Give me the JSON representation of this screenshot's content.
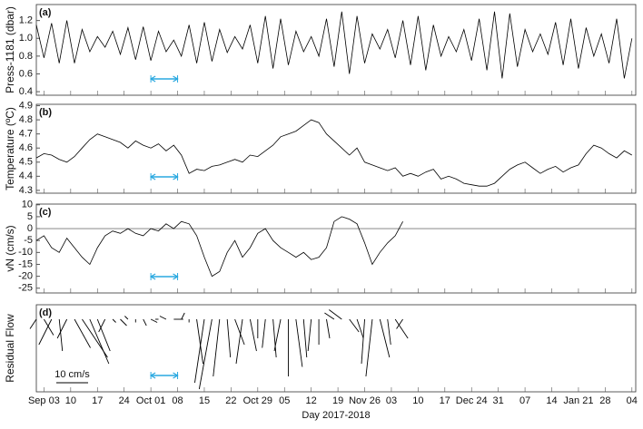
{
  "chart_data": [
    {
      "type": "line",
      "label": "(a)",
      "ylabel": "Press-1181 (dbar)",
      "color": "#000000",
      "x": [
        "2017-09-01",
        "2017-09-03",
        "2017-09-05",
        "2017-09-07",
        "2017-09-09",
        "2017-09-11",
        "2017-09-13",
        "2017-09-15",
        "2017-09-17",
        "2017-09-19",
        "2017-09-21",
        "2017-09-23",
        "2017-09-25",
        "2017-09-27",
        "2017-09-29",
        "2017-10-01",
        "2017-10-03",
        "2017-10-05",
        "2017-10-07",
        "2017-10-09",
        "2017-10-11",
        "2017-10-13",
        "2017-10-15",
        "2017-10-17",
        "2017-10-19",
        "2017-10-21",
        "2017-10-23",
        "2017-10-25",
        "2017-10-27",
        "2017-10-29",
        "2017-10-31",
        "2017-11-02",
        "2017-11-04",
        "2017-11-06",
        "2017-11-08",
        "2017-11-10",
        "2017-11-12",
        "2017-11-14",
        "2017-11-16",
        "2017-11-18",
        "2017-11-20",
        "2017-11-22",
        "2017-11-24",
        "2017-11-26",
        "2017-11-28",
        "2017-11-30",
        "2017-12-02",
        "2017-12-04",
        "2017-12-06",
        "2017-12-08",
        "2017-12-10",
        "2017-12-12",
        "2017-12-14",
        "2017-12-16",
        "2017-12-18",
        "2017-12-20",
        "2017-12-22",
        "2017-12-24",
        "2017-12-26",
        "2017-12-28",
        "2017-12-30",
        "2018-01-01",
        "2018-01-03",
        "2018-01-05",
        "2018-01-07",
        "2018-01-09",
        "2018-01-11",
        "2018-01-13",
        "2018-01-15",
        "2018-01-17",
        "2018-01-19",
        "2018-01-21",
        "2018-01-23",
        "2018-01-25",
        "2018-01-27",
        "2018-01-29",
        "2018-01-31",
        "2018-02-02",
        "2018-02-04"
      ],
      "values": [
        1.15,
        0.78,
        1.17,
        0.72,
        1.2,
        0.72,
        1.1,
        0.85,
        1.02,
        0.9,
        1.08,
        0.82,
        1.12,
        0.76,
        1.13,
        0.75,
        1.08,
        0.85,
        0.98,
        0.8,
        1.15,
        0.72,
        1.18,
        0.74,
        1.1,
        0.84,
        1.02,
        0.88,
        1.15,
        0.72,
        1.25,
        0.66,
        1.22,
        0.7,
        1.08,
        0.85,
        1.02,
        0.8,
        1.22,
        0.68,
        1.3,
        0.6,
        1.25,
        0.72,
        1.05,
        0.88,
        1.1,
        0.78,
        1.2,
        0.7,
        1.25,
        0.64,
        1.15,
        0.8,
        1.02,
        0.85,
        1.1,
        0.75,
        1.22,
        0.64,
        1.3,
        0.55,
        1.28,
        0.68,
        1.1,
        0.85,
        1.05,
        0.82,
        1.18,
        0.7,
        1.22,
        0.66,
        1.12,
        0.8,
        1.05,
        0.72,
        1.22,
        0.55,
        1.0
      ],
      "ylim": [
        0.36,
        1.38
      ],
      "yticks": [
        0.4,
        0.6,
        0.8,
        {
          "value": 1,
          "label": "1.0"
        },
        1.2
      ],
      "span": {
        "start": "2017-10-01",
        "end": "2017-10-08",
        "color": "#29a8e0"
      }
    },
    {
      "type": "line",
      "label": "(b)",
      "ylabel": "Temperature (ºC)",
      "color": "#000000",
      "x": [
        "2017-09-01",
        "2017-09-03",
        "2017-09-05",
        "2017-09-07",
        "2017-09-09",
        "2017-09-11",
        "2017-09-13",
        "2017-09-15",
        "2017-09-17",
        "2017-09-19",
        "2017-09-21",
        "2017-09-23",
        "2017-09-25",
        "2017-09-27",
        "2017-09-29",
        "2017-10-01",
        "2017-10-03",
        "2017-10-05",
        "2017-10-07",
        "2017-10-09",
        "2017-10-11",
        "2017-10-13",
        "2017-10-15",
        "2017-10-17",
        "2017-10-19",
        "2017-10-21",
        "2017-10-23",
        "2017-10-25",
        "2017-10-27",
        "2017-10-29",
        "2017-10-31",
        "2017-11-02",
        "2017-11-04",
        "2017-11-06",
        "2017-11-08",
        "2017-11-10",
        "2017-11-12",
        "2017-11-14",
        "2017-11-16",
        "2017-11-18",
        "2017-11-20",
        "2017-11-22",
        "2017-11-24",
        "2017-11-26",
        "2017-11-28",
        "2017-11-30",
        "2017-12-02",
        "2017-12-04",
        "2017-12-06",
        "2017-12-08",
        "2017-12-10",
        "2017-12-12",
        "2017-12-14",
        "2017-12-16",
        "2017-12-18",
        "2017-12-20",
        "2017-12-22",
        "2017-12-24",
        "2017-12-26",
        "2017-12-28",
        "2017-12-30",
        "2018-01-01",
        "2018-01-03",
        "2018-01-05",
        "2018-01-07",
        "2018-01-09",
        "2018-01-11",
        "2018-01-13",
        "2018-01-15",
        "2018-01-17",
        "2018-01-19",
        "2018-01-21",
        "2018-01-23",
        "2018-01-25",
        "2018-01-27",
        "2018-01-29",
        "2018-01-31",
        "2018-02-02",
        "2018-02-04"
      ],
      "values": [
        4.53,
        4.56,
        4.55,
        4.52,
        4.5,
        4.54,
        4.6,
        4.66,
        4.7,
        4.68,
        4.66,
        4.64,
        4.6,
        4.65,
        4.62,
        4.6,
        4.63,
        4.58,
        4.62,
        4.55,
        4.42,
        4.45,
        4.44,
        4.47,
        4.48,
        4.5,
        4.52,
        4.5,
        4.55,
        4.54,
        4.58,
        4.62,
        4.68,
        4.7,
        4.72,
        4.76,
        4.8,
        4.78,
        4.7,
        4.65,
        4.6,
        4.55,
        4.6,
        4.5,
        4.48,
        4.46,
        4.44,
        4.46,
        4.4,
        4.42,
        4.4,
        4.43,
        4.45,
        4.38,
        4.4,
        4.38,
        4.35,
        4.34,
        4.33,
        4.33,
        4.35,
        4.4,
        4.45,
        4.48,
        4.5,
        4.46,
        4.42,
        4.45,
        4.47,
        4.43,
        4.46,
        4.48,
        4.56,
        4.62,
        4.6,
        4.56,
        4.53,
        4.58,
        4.55
      ],
      "ylim": [
        4.28,
        4.91
      ],
      "yticks": [
        4.3,
        4.4,
        4.5,
        4.6,
        4.7,
        4.8,
        4.9
      ]
    },
    {
      "type": "line",
      "label": "(c)",
      "ylabel": "vN (cm/s)",
      "color": "#000000",
      "hline": 0,
      "x": [
        "2017-09-01",
        "2017-09-03",
        "2017-09-05",
        "2017-09-07",
        "2017-09-09",
        "2017-09-11",
        "2017-09-13",
        "2017-09-15",
        "2017-09-17",
        "2017-09-19",
        "2017-09-21",
        "2017-09-23",
        "2017-09-25",
        "2017-09-27",
        "2017-09-29",
        "2017-10-01",
        "2017-10-03",
        "2017-10-05",
        "2017-10-07",
        "2017-10-09",
        "2017-10-11",
        "2017-10-13",
        "2017-10-15",
        "2017-10-17",
        "2017-10-19",
        "2017-10-21",
        "2017-10-23",
        "2017-10-25",
        "2017-10-27",
        "2017-10-29",
        "2017-10-31",
        "2017-11-02",
        "2017-11-04",
        "2017-11-06",
        "2017-11-08",
        "2017-11-10",
        "2017-11-12",
        "2017-11-14",
        "2017-11-16",
        "2017-11-18",
        "2017-11-20",
        "2017-11-22",
        "2017-11-24",
        "2017-11-26",
        "2017-11-28",
        "2017-11-30",
        "2017-12-02",
        "2017-12-04",
        "2017-12-06"
      ],
      "values": [
        -5,
        -3,
        -8,
        -10,
        -4,
        -8,
        -12,
        -15,
        -8,
        -3,
        -1,
        -2,
        0,
        -2,
        -3,
        0,
        -1,
        2,
        0,
        3,
        2,
        -3,
        -12,
        -20,
        -18,
        -10,
        -5,
        -12,
        -8,
        -2,
        0,
        -5,
        -8,
        -10,
        -12,
        -10,
        -13,
        -12,
        -8,
        3,
        5,
        4,
        2,
        -6,
        -15,
        -10,
        -6,
        -3,
        3
      ],
      "ylim": [
        -27,
        10.3
      ],
      "yticks": [
        -25,
        -20,
        -15,
        -10,
        -5,
        0,
        5,
        10
      ]
    },
    {
      "type": "stick",
      "label": "(d)",
      "ylabel": "Residual Flow",
      "color": "#000000",
      "xlabel": "Day 2017-2018",
      "scale_bar": {
        "value": 10,
        "label": "10 cm/s"
      },
      "x": [
        "2017-09-01",
        "2017-09-03",
        "2017-09-05",
        "2017-09-07",
        "2017-09-09",
        "2017-09-11",
        "2017-09-13",
        "2017-09-15",
        "2017-09-17",
        "2017-09-19",
        "2017-09-21",
        "2017-09-23",
        "2017-09-25",
        "2017-09-27",
        "2017-09-29",
        "2017-10-01",
        "2017-10-03",
        "2017-10-05",
        "2017-10-07",
        "2017-10-09",
        "2017-10-11",
        "2017-10-13",
        "2017-10-15",
        "2017-10-17",
        "2017-10-19",
        "2017-10-21",
        "2017-10-23",
        "2017-10-25",
        "2017-10-27",
        "2017-10-29",
        "2017-10-31",
        "2017-11-02",
        "2017-11-04",
        "2017-11-06",
        "2017-11-08",
        "2017-11-10",
        "2017-11-12",
        "2017-11-14",
        "2017-11-16",
        "2017-11-18",
        "2017-11-20",
        "2017-11-22",
        "2017-11-24",
        "2017-11-26",
        "2017-11-28",
        "2017-11-30",
        "2017-12-02",
        "2017-12-04",
        "2017-12-06"
      ],
      "u": [
        -2,
        3,
        -4,
        1,
        -3,
        5,
        8,
        6,
        4,
        -2,
        1,
        2,
        -1,
        0,
        1,
        2,
        -1,
        -2,
        3,
        1,
        0,
        2,
        -3,
        -4,
        -2,
        1,
        3,
        -2,
        2,
        0,
        -1,
        1,
        -2,
        0,
        2,
        1,
        -1,
        0,
        1,
        -3,
        -4,
        3,
        2,
        -1,
        -2,
        3,
        1,
        4,
        -2
      ],
      "v": [
        -3,
        -5,
        -8,
        -10,
        -6,
        -9,
        -12,
        -14,
        -10,
        -4,
        -1,
        -2,
        1,
        -1,
        -2,
        -1,
        0,
        1,
        0,
        2,
        -1,
        -14,
        -20,
        -22,
        -18,
        -12,
        -8,
        -14,
        -10,
        -6,
        -9,
        -12,
        -10,
        -18,
        -15,
        -12,
        -10,
        -8,
        -6,
        2,
        3,
        -4,
        -6,
        -14,
        -18,
        -12,
        -8,
        -6,
        -3
      ],
      "xlim": [
        "2017-09-01",
        "2018-02-05"
      ],
      "xticks": [
        {
          "value": "2017-09-03",
          "label": "Sep 03"
        },
        {
          "value": "2017-09-10",
          "label": "10"
        },
        {
          "value": "2017-09-17",
          "label": "17"
        },
        {
          "value": "2017-09-24",
          "label": "24"
        },
        {
          "value": "2017-10-01",
          "label": "Oct 01"
        },
        {
          "value": "2017-10-08",
          "label": "08"
        },
        {
          "value": "2017-10-15",
          "label": "15"
        },
        {
          "value": "2017-10-22",
          "label": "22"
        },
        {
          "value": "2017-10-29",
          "label": "Oct 29"
        },
        {
          "value": "2017-11-05",
          "label": "05"
        },
        {
          "value": "2017-11-12",
          "label": "12"
        },
        {
          "value": "2017-11-19",
          "label": "19"
        },
        {
          "value": "2017-11-26",
          "label": "Nov 26"
        },
        {
          "value": "2017-12-03",
          "label": "03"
        },
        {
          "value": "2017-12-10",
          "label": "10"
        },
        {
          "value": "2017-12-17",
          "label": "17"
        },
        {
          "value": "2017-12-24",
          "label": "Dec 24"
        },
        {
          "value": "2017-12-31",
          "label": "31"
        },
        {
          "value": "2018-01-07",
          "label": "07"
        },
        {
          "value": "2018-01-14",
          "label": "14"
        },
        {
          "value": "2018-01-21",
          "label": "Jan 21"
        },
        {
          "value": "2018-01-28",
          "label": "28"
        },
        {
          "value": "2018-02-04",
          "label": "04"
        }
      ]
    }
  ]
}
